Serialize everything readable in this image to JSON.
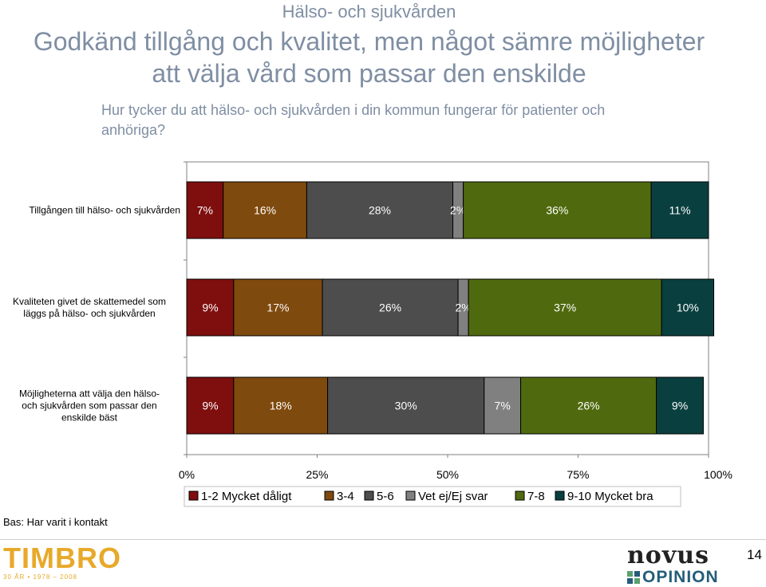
{
  "header": {
    "section": "Hälso- och sjukvården",
    "headline_line1": "Godkänd tillgång och kvalitet, men något sämre möjligheter",
    "headline_line2": "att välja vård som passar den enskilde",
    "question_line1": "Hur tycker du att hälso- och sjukvården i din kommun fungerar för patienter och",
    "question_line2": "anhöriga?"
  },
  "chart_data": {
    "type": "bar",
    "orientation": "horizontal",
    "stacked": "percent",
    "categories": [
      [
        "Tillgången till hälso- och sjukvården"
      ],
      [
        "Kvaliteten givet de skattemedel som",
        "läggs på hälso- och sjukvården"
      ],
      [
        "Möjligheterna att välja den hälso-",
        "och sjukvården som passar den",
        "enskilde bäst"
      ]
    ],
    "series": [
      {
        "name": "1-2 Mycket dåligt",
        "color": "#7f0e0e",
        "values": [
          7,
          9,
          9
        ]
      },
      {
        "name": "3-4",
        "color": "#7f4a0e",
        "values": [
          16,
          17,
          18
        ]
      },
      {
        "name": "5-6",
        "color": "#4d4d4d",
        "values": [
          28,
          26,
          30
        ]
      },
      {
        "name": "Vet ej/Ej svar",
        "color": "#808080",
        "values": [
          2,
          2,
          7
        ]
      },
      {
        "name": "7-8",
        "color": "#4f6a0e",
        "values": [
          36,
          37,
          26
        ]
      },
      {
        "name": "9-10 Mycket bra",
        "color": "#0a3f3f",
        "values": [
          11,
          10,
          9
        ]
      }
    ],
    "x_ticks": [
      "0%",
      "25%",
      "50%",
      "75%",
      "100%"
    ],
    "xlim": [
      0,
      100
    ],
    "legend_position": "bottom"
  },
  "footer": {
    "base": "Bas: Har varit i kontakt",
    "timbro": "TIMBRO",
    "timbro_sub": "30 ÅR • 1978 – 2008",
    "novus": "novus",
    "novus_sub": "OPINION",
    "page": "14"
  },
  "colors": {
    "title": "#7f8ea3",
    "timbro": "#e8a92a",
    "novus_blue": "#245d7a",
    "novus_green": "#5aa06e"
  }
}
